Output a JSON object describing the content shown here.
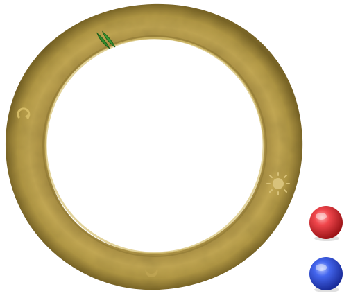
{
  "ring_wheel": {
    "ring_color": "#b59a4a",
    "ring_shadow_color": "#8c7530",
    "ring_highlight_color": "#d8c06a",
    "icons": [
      {
        "name": "leaf-icon",
        "color": "#2f8a2a"
      },
      {
        "name": "rotate-icon",
        "color": "#c8ad5a"
      },
      {
        "name": "sun-icon",
        "color": "#d4bd6a"
      },
      {
        "name": "moon-icon",
        "color": "#c8ad5a"
      }
    ]
  },
  "orbs": {
    "red": {
      "name": "red-orb-button",
      "color": "#e03a40"
    },
    "blue": {
      "name": "blue-orb-button",
      "color": "#3a5ee0"
    }
  }
}
